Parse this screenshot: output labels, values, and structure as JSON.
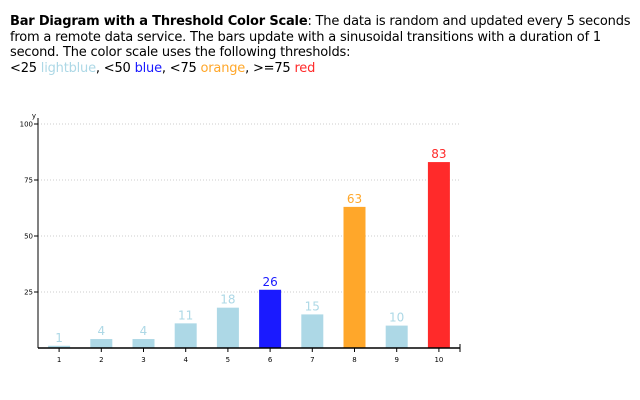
{
  "description": {
    "title": "Bar Diagram with a Threshold Color Scale",
    "body": ": The data is random and updated every 5 seconds from a remote data service. The bars update with a sinusoidal transitions with a duration of 1 second. The color scale uses the following thresholds:",
    "thresholds": [
      {
        "prefix": "<25 ",
        "label": "lightblue",
        "suffix": ", "
      },
      {
        "prefix": "<50 ",
        "label": "blue",
        "suffix": ", "
      },
      {
        "prefix": "<75 ",
        "label": "orange",
        "suffix": ", "
      },
      {
        "prefix": ">=75 ",
        "label": "red",
        "suffix": ""
      }
    ]
  },
  "colors": {
    "lightblue": "#add8e6",
    "blue": "#1a1aff",
    "orange": "#ffa72a",
    "red": "#ff2a2a"
  },
  "chart_data": {
    "type": "bar",
    "ylabel": "y",
    "ylim": [
      0,
      100
    ],
    "yticks": [
      25,
      50,
      75,
      100
    ],
    "grid": true,
    "categories": [
      "1",
      "2",
      "3",
      "4",
      "5",
      "6",
      "7",
      "8",
      "9",
      "10"
    ],
    "values": [
      1,
      4,
      4,
      11,
      18,
      26,
      15,
      63,
      10,
      83
    ]
  }
}
